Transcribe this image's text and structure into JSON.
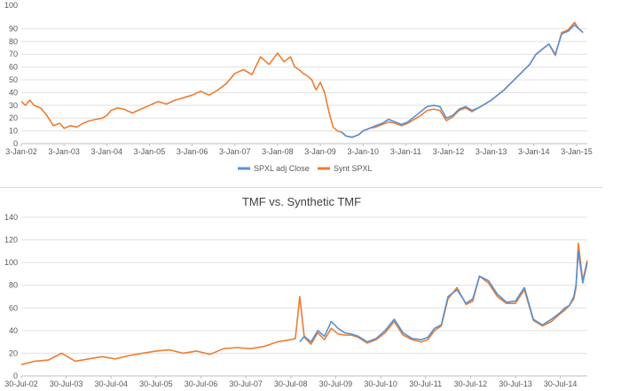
{
  "colors": {
    "blue": "#5b8fd4",
    "orange": "#ed7d31"
  },
  "chart_data": [
    {
      "type": "line",
      "title": "",
      "xlabel": "",
      "ylabel": "",
      "ylim": [
        0,
        100
      ],
      "y_ticks": [
        0,
        10,
        20,
        30,
        40,
        50,
        60,
        70,
        80,
        90
      ],
      "y_top_tick_partial": "100",
      "x_tick_labels": [
        "3-Jan-02",
        "3-Jan-03",
        "3-Jan-04",
        "3-Jan-05",
        "3-Jan-06",
        "3-Jan-07",
        "3-Jan-08",
        "3-Jan-09",
        "3-Jan-10",
        "3-Jan-11",
        "3-Jan-12",
        "3-Jan-13",
        "3-Jan-14",
        "3-Jan-15"
      ],
      "x_range": [
        0,
        13.25
      ],
      "grid": "horizontal",
      "legend_position": "bottom",
      "series": [
        {
          "name": "SPXL adj Close",
          "color": "#5b8fd4",
          "x": [
            7.5,
            7.6,
            7.75,
            7.9,
            8.0,
            8.15,
            8.3,
            8.45,
            8.6,
            8.75,
            8.9,
            9.05,
            9.2,
            9.35,
            9.5,
            9.65,
            9.8,
            9.95,
            10.1,
            10.25,
            10.4,
            10.55,
            10.7,
            10.85,
            11.0,
            11.15,
            11.3,
            11.45,
            11.6,
            11.75,
            11.9,
            12.05,
            12.2,
            12.35,
            12.5,
            12.65,
            12.8,
            12.95,
            13.05,
            13.15
          ],
          "y": [
            9,
            6,
            5,
            7,
            10,
            12,
            14,
            16,
            19,
            17,
            15,
            17,
            21,
            25,
            29,
            30,
            29,
            20,
            22,
            27,
            29,
            26,
            28,
            31,
            34,
            38,
            42,
            47,
            52,
            57,
            62,
            70,
            74,
            78,
            70,
            86,
            88,
            93,
            90,
            87
          ]
        },
        {
          "name": "Synt SPXL",
          "color": "#ed7d31",
          "x": [
            0,
            0.1,
            0.2,
            0.3,
            0.45,
            0.6,
            0.75,
            0.9,
            1.0,
            1.15,
            1.3,
            1.45,
            1.6,
            1.75,
            1.9,
            2.0,
            2.1,
            2.25,
            2.4,
            2.6,
            2.8,
            3.0,
            3.2,
            3.4,
            3.6,
            3.8,
            4.0,
            4.2,
            4.4,
            4.6,
            4.8,
            5.0,
            5.2,
            5.4,
            5.6,
            5.8,
            6.0,
            6.15,
            6.3,
            6.4,
            6.5,
            6.6,
            6.7,
            6.8,
            6.9,
            7.0,
            7.1,
            7.2,
            7.3,
            7.4,
            7.5,
            7.6,
            7.75,
            7.9,
            8.0,
            8.15,
            8.3,
            8.45,
            8.6,
            8.75,
            8.9,
            9.05,
            9.2,
            9.35,
            9.5,
            9.65,
            9.8,
            9.95,
            10.1,
            10.25,
            10.4,
            10.55,
            10.7,
            10.85,
            11.0,
            11.15,
            11.3,
            11.45,
            11.6,
            11.75,
            11.9,
            12.05,
            12.2,
            12.35,
            12.5,
            12.65,
            12.8,
            12.95,
            13.05,
            13.15
          ],
          "y": [
            33,
            30,
            34,
            30,
            28,
            22,
            14,
            16,
            12,
            14,
            13,
            16,
            18,
            19,
            20,
            22,
            26,
            28,
            27,
            24,
            27,
            30,
            33,
            31,
            34,
            36,
            38,
            41,
            38,
            42,
            47,
            55,
            58,
            54,
            68,
            62,
            71,
            64,
            68,
            60,
            58,
            55,
            53,
            50,
            42,
            48,
            40,
            25,
            13,
            10,
            9,
            6,
            5,
            7,
            10,
            12,
            13,
            15,
            17,
            16,
            14,
            16,
            19,
            22,
            26,
            27,
            26,
            18,
            21,
            26,
            28,
            25,
            28,
            31,
            34,
            38,
            42,
            47,
            52,
            57,
            62,
            70,
            74,
            78,
            69,
            87,
            89,
            95,
            90,
            87
          ]
        }
      ]
    },
    {
      "type": "line",
      "title": "TMF vs. Synthetic TMF",
      "xlabel": "",
      "ylabel": "",
      "ylim": [
        0,
        140
      ],
      "y_ticks": [
        0,
        20,
        40,
        60,
        80,
        100,
        120,
        140
      ],
      "x_tick_labels": [
        "30-Jul-02",
        "30-Jul-03",
        "30-Jul-04",
        "30-Jul-05",
        "30-Jul-06",
        "30-Jul-07",
        "30-Jul-08",
        "30-Jul-09",
        "30-Jul-10",
        "30-Jul-11",
        "30-Jul-12",
        "30-Jul-13",
        "30-Jul-14"
      ],
      "x_range": [
        0,
        12.6
      ],
      "grid": "horizontal",
      "legend_position": "none",
      "series": [
        {
          "name": "",
          "color": "#5b8fd4",
          "x": [
            6.2,
            6.3,
            6.45,
            6.6,
            6.75,
            6.9,
            7.05,
            7.2,
            7.35,
            7.5,
            7.7,
            7.9,
            8.1,
            8.3,
            8.5,
            8.7,
            8.9,
            9.05,
            9.2,
            9.35,
            9.5,
            9.7,
            9.9,
            10.05,
            10.2,
            10.4,
            10.6,
            10.8,
            11.0,
            11.2,
            11.4,
            11.6,
            11.8,
            12.0,
            12.1,
            12.2,
            12.3,
            12.35,
            12.4,
            12.5,
            12.6
          ],
          "y": [
            30,
            35,
            30,
            40,
            35,
            48,
            42,
            38,
            37,
            35,
            30,
            33,
            40,
            50,
            38,
            33,
            32,
            34,
            42,
            45,
            70,
            76,
            64,
            68,
            88,
            84,
            72,
            65,
            66,
            78,
            50,
            45,
            50,
            56,
            60,
            62,
            70,
            80,
            110,
            82,
            100
          ]
        },
        {
          "name": "",
          "color": "#ed7d31",
          "x": [
            0,
            0.3,
            0.6,
            0.9,
            1.2,
            1.5,
            1.8,
            2.1,
            2.4,
            2.7,
            3.0,
            3.3,
            3.6,
            3.9,
            4.2,
            4.5,
            4.8,
            5.1,
            5.4,
            5.7,
            6.0,
            6.1,
            6.2,
            6.3,
            6.45,
            6.6,
            6.75,
            6.9,
            7.05,
            7.2,
            7.35,
            7.5,
            7.7,
            7.9,
            8.1,
            8.3,
            8.5,
            8.7,
            8.9,
            9.05,
            9.2,
            9.35,
            9.5,
            9.7,
            9.9,
            10.05,
            10.2,
            10.4,
            10.6,
            10.8,
            11.0,
            11.2,
            11.4,
            11.6,
            11.8,
            12.0,
            12.1,
            12.2,
            12.3,
            12.35,
            12.4,
            12.5,
            12.6
          ],
          "y": [
            10,
            13,
            14,
            20,
            13,
            15,
            17,
            15,
            18,
            20,
            22,
            23,
            20,
            22,
            19,
            24,
            25,
            24,
            26,
            30,
            32,
            33,
            70,
            34,
            28,
            38,
            32,
            42,
            37,
            36,
            36,
            34,
            29,
            32,
            38,
            48,
            36,
            32,
            30,
            32,
            40,
            44,
            68,
            78,
            63,
            66,
            88,
            82,
            70,
            64,
            64,
            76,
            49,
            44,
            48,
            55,
            58,
            62,
            68,
            78,
            117,
            84,
            102
          ]
        }
      ]
    }
  ]
}
